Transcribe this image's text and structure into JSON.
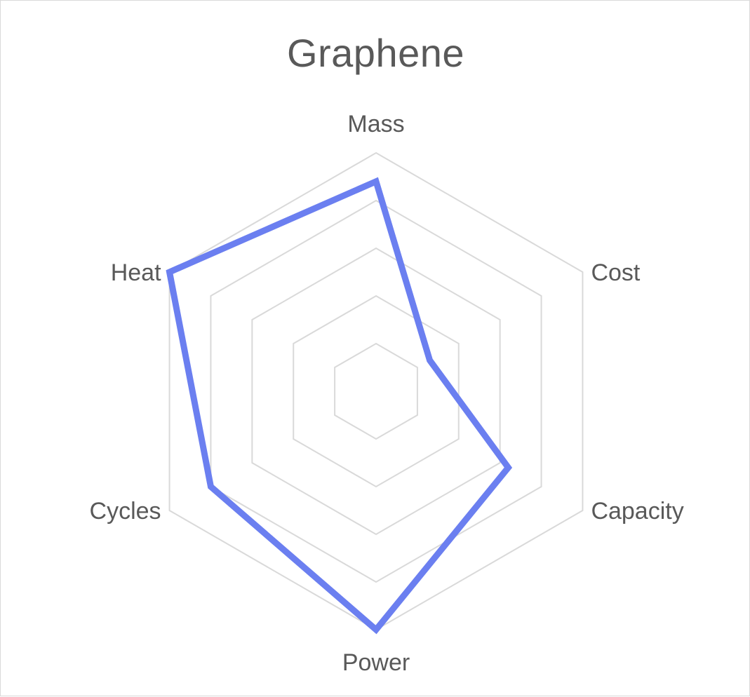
{
  "chart_data": {
    "type": "radar",
    "title": "Graphene",
    "categories": [
      "Mass",
      "Cost",
      "Capacity",
      "Power",
      "Cycles",
      "Heat"
    ],
    "series": [
      {
        "values": [
          4.4,
          1.3,
          3.2,
          5.0,
          4.0,
          5.0
        ]
      }
    ],
    "rlim": [
      0,
      5
    ],
    "grid": true,
    "legend": "none",
    "colors": {
      "series": "#6b7ff0",
      "grid": "#d9d9d9",
      "text": "#595959"
    }
  }
}
